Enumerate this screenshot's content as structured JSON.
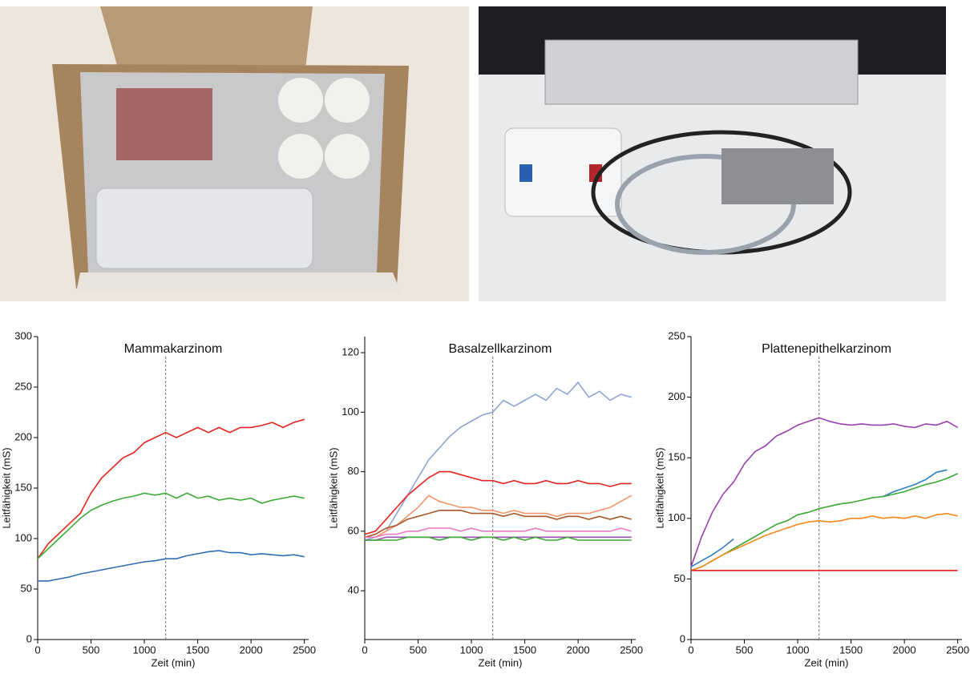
{
  "chart_data": [
    {
      "type": "line",
      "title": "Mammakarzinom",
      "x_label": "Zeit (min)",
      "y_label": "Leitfähigkeit (mS)",
      "x": [
        0,
        100,
        200,
        300,
        400,
        500,
        600,
        700,
        800,
        900,
        1000,
        1100,
        1200,
        1300,
        1400,
        1500,
        1600,
        1700,
        1800,
        1900,
        2000,
        2100,
        2200,
        2300,
        2400,
        2500
      ],
      "xlim": [
        0,
        2540
      ],
      "xticks": [
        0,
        500,
        1000,
        1500,
        2000,
        2500
      ],
      "ylim": [
        0,
        300
      ],
      "yticks": [
        0,
        50,
        100,
        150,
        200,
        250,
        300
      ],
      "reference_x": 1200,
      "series": [
        {
          "color": "#e8231f",
          "values": [
            80,
            95,
            105,
            115,
            125,
            145,
            160,
            170,
            180,
            185,
            195,
            200,
            205,
            200,
            205,
            210,
            205,
            210,
            205,
            210,
            210,
            212,
            215,
            210,
            215,
            218
          ]
        },
        {
          "color": "#3aaa35",
          "values": [
            80,
            90,
            100,
            110,
            120,
            128,
            133,
            137,
            140,
            142,
            145,
            143,
            145,
            140,
            145,
            140,
            142,
            138,
            140,
            138,
            140,
            135,
            138,
            140,
            142,
            140
          ]
        },
        {
          "color": "#2f6fb5",
          "values": [
            58,
            58,
            60,
            62,
            65,
            67,
            69,
            71,
            73,
            75,
            77,
            78,
            80,
            80,
            83,
            85,
            87,
            88,
            86,
            86,
            84,
            85,
            84,
            83,
            84,
            82
          ]
        }
      ]
    },
    {
      "type": "line",
      "title": "Basalzellkarzinom",
      "x_label": "Zeit (min)",
      "y_label": "Leitfähigkeit (mS)",
      "x": [
        0,
        100,
        200,
        300,
        400,
        500,
        600,
        700,
        800,
        900,
        1000,
        1100,
        1200,
        1300,
        1400,
        1500,
        1600,
        1700,
        1800,
        1900,
        2000,
        2100,
        2200,
        2300,
        2400,
        2500
      ],
      "xlim": [
        0,
        2540
      ],
      "xticks": [
        0,
        500,
        1000,
        1500,
        2000,
        2500
      ],
      "ylim": [
        23.6,
        125.4
      ],
      "yticks": [
        40,
        60,
        80,
        100,
        120
      ],
      "reference_x": 1200,
      "series": [
        {
          "color": "#8fa3d4",
          "values": [
            57,
            58,
            60,
            66,
            72,
            78,
            84,
            88,
            92,
            95,
            97,
            99,
            100,
            104,
            102,
            104,
            106,
            104,
            108,
            106,
            110,
            105,
            107,
            104,
            106,
            105
          ]
        },
        {
          "color": "#e8231f",
          "values": [
            59,
            60,
            64,
            68,
            72,
            75,
            78,
            80,
            80,
            79,
            78,
            77,
            77,
            76,
            77,
            76,
            76,
            77,
            76,
            76,
            77,
            76,
            76,
            75,
            76,
            76
          ]
        },
        {
          "color": "#f4956b",
          "values": [
            58,
            58,
            60,
            62,
            65,
            68,
            72,
            70,
            69,
            68,
            68,
            67,
            67,
            66,
            67,
            66,
            66,
            66,
            65,
            66,
            66,
            66,
            67,
            68,
            70,
            72
          ]
        },
        {
          "color": "#a8572a",
          "values": [
            58,
            59,
            61,
            62,
            64,
            65,
            66,
            67,
            67,
            67,
            66,
            66,
            66,
            65,
            66,
            65,
            65,
            65,
            64,
            65,
            65,
            64,
            65,
            64,
            65,
            64
          ]
        },
        {
          "color": "#f07cc4",
          "values": [
            58,
            58,
            59,
            59,
            60,
            60,
            61,
            61,
            61,
            60,
            61,
            60,
            60,
            60,
            60,
            60,
            61,
            60,
            60,
            60,
            60,
            60,
            60,
            60,
            61,
            60
          ]
        },
        {
          "color": "#9a4fb0",
          "values": [
            57,
            57,
            58,
            58,
            58,
            58,
            58,
            58,
            58,
            58,
            58,
            58,
            58,
            58,
            58,
            58,
            58,
            58,
            58,
            58,
            58,
            58,
            58,
            58,
            58,
            58
          ]
        },
        {
          "color": "#3aaa35",
          "values": [
            57,
            57,
            57,
            57,
            58,
            58,
            58,
            57,
            58,
            58,
            57,
            58,
            58,
            57,
            58,
            57,
            58,
            57,
            57,
            58,
            57,
            57,
            57,
            57,
            57,
            57
          ]
        }
      ]
    },
    {
      "type": "line",
      "title": "Plattenepithelkarzinom",
      "x_label": "Zeit (min)",
      "y_label": "Leitfähigkeit (mS)",
      "x": [
        0,
        100,
        200,
        300,
        400,
        500,
        600,
        700,
        800,
        900,
        1000,
        1100,
        1200,
        1300,
        1400,
        1500,
        1600,
        1700,
        1800,
        1900,
        2000,
        2100,
        2200,
        2300,
        2400,
        2500
      ],
      "xlim": [
        0,
        2540
      ],
      "xticks": [
        0,
        500,
        1000,
        1500,
        2000,
        2500
      ],
      "ylim": [
        0,
        250
      ],
      "yticks": [
        0,
        50,
        100,
        150,
        200,
        250
      ],
      "reference_x": 1200,
      "series": [
        {
          "color": "#9a3fb0",
          "values": [
            60,
            85,
            105,
            120,
            130,
            145,
            155,
            160,
            168,
            172,
            177,
            180,
            183,
            180,
            178,
            177,
            178,
            177,
            177,
            178,
            176,
            175,
            178,
            177,
            180,
            175
          ]
        },
        {
          "color": "#2f7fc1",
          "values": [
            60,
            65,
            70,
            76,
            83,
            null,
            null,
            null,
            null,
            null,
            null,
            null,
            null,
            null,
            null,
            null,
            null,
            null,
            118,
            122,
            125,
            128,
            132,
            138,
            140,
            null
          ]
        },
        {
          "color": "#3aaa35",
          "values": [
            57,
            60,
            65,
            70,
            75,
            80,
            85,
            90,
            95,
            98,
            103,
            105,
            108,
            110,
            112,
            113,
            115,
            117,
            118,
            120,
            122,
            125,
            128,
            130,
            133,
            137
          ]
        },
        {
          "color": "#f5891f",
          "values": [
            57,
            60,
            65,
            70,
            74,
            78,
            82,
            86,
            89,
            92,
            95,
            97,
            98,
            97,
            98,
            100,
            100,
            102,
            100,
            101,
            100,
            102,
            100,
            103,
            104,
            102
          ]
        },
        {
          "color": "#e8231f",
          "values": [
            57,
            57,
            57,
            57,
            57,
            57,
            57,
            57,
            57,
            57,
            57,
            57,
            57,
            57,
            57,
            57,
            57,
            57,
            57,
            57,
            57,
            57,
            57,
            57,
            57,
            57
          ]
        }
      ]
    }
  ]
}
